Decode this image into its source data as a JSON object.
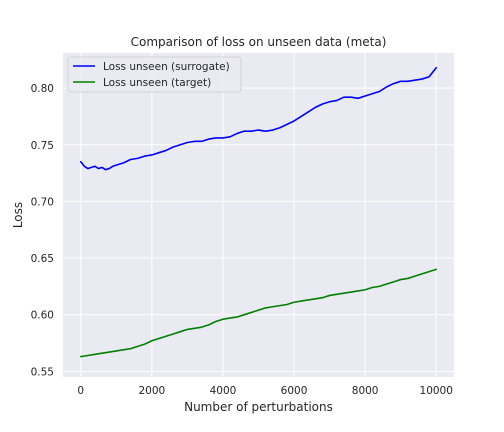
{
  "chart_data": {
    "type": "line",
    "title": "Comparison of loss on unseen data (meta)",
    "xlabel": "Number of perturbations",
    "ylabel": "Loss",
    "xlim": [
      -500,
      10500
    ],
    "ylim": [
      0.545,
      0.831
    ],
    "xticks": [
      0,
      2000,
      4000,
      6000,
      8000,
      10000
    ],
    "yticks": [
      0.55,
      0.6,
      0.65,
      0.7,
      0.75,
      0.8
    ],
    "ytick_labels": [
      "0.55",
      "0.60",
      "0.65",
      "0.70",
      "0.75",
      "0.80"
    ],
    "grid": true,
    "legend_position": "top-left",
    "background": "#eaeaf2",
    "series": [
      {
        "name": "Loss unseen (surrogate)",
        "color": "#0000ff",
        "x": [
          0,
          100,
          200,
          300,
          400,
          500,
          600,
          700,
          800,
          900,
          1000,
          1200,
          1400,
          1600,
          1800,
          2000,
          2200,
          2400,
          2600,
          2800,
          3000,
          3200,
          3400,
          3600,
          3800,
          4000,
          4200,
          4400,
          4600,
          4800,
          5000,
          5200,
          5400,
          5600,
          5800,
          6000,
          6200,
          6400,
          6600,
          6800,
          7000,
          7200,
          7400,
          7600,
          7800,
          8000,
          8200,
          8400,
          8600,
          8800,
          9000,
          9200,
          9400,
          9600,
          9800,
          10000
        ],
        "y": [
          0.735,
          0.731,
          0.729,
          0.73,
          0.731,
          0.729,
          0.73,
          0.728,
          0.729,
          0.731,
          0.732,
          0.734,
          0.737,
          0.738,
          0.74,
          0.741,
          0.743,
          0.745,
          0.748,
          0.75,
          0.752,
          0.753,
          0.753,
          0.755,
          0.756,
          0.756,
          0.757,
          0.76,
          0.762,
          0.762,
          0.763,
          0.762,
          0.763,
          0.765,
          0.768,
          0.771,
          0.775,
          0.779,
          0.783,
          0.786,
          0.788,
          0.789,
          0.792,
          0.792,
          0.791,
          0.793,
          0.795,
          0.797,
          0.801,
          0.804,
          0.806,
          0.806,
          0.807,
          0.808,
          0.81,
          0.818
        ]
      },
      {
        "name": "Loss unseen (target)",
        "color": "#008000",
        "x": [
          0,
          200,
          400,
          600,
          800,
          1000,
          1200,
          1400,
          1600,
          1800,
          2000,
          2200,
          2400,
          2600,
          2800,
          3000,
          3200,
          3400,
          3600,
          3800,
          4000,
          4200,
          4400,
          4600,
          4800,
          5000,
          5200,
          5400,
          5600,
          5800,
          6000,
          6200,
          6400,
          6600,
          6800,
          7000,
          7200,
          7400,
          7600,
          7800,
          8000,
          8200,
          8400,
          8600,
          8800,
          9000,
          9200,
          9400,
          9600,
          9800,
          10000
        ],
        "y": [
          0.563,
          0.564,
          0.565,
          0.566,
          0.567,
          0.568,
          0.569,
          0.57,
          0.572,
          0.574,
          0.577,
          0.579,
          0.581,
          0.583,
          0.585,
          0.587,
          0.588,
          0.589,
          0.591,
          0.594,
          0.596,
          0.597,
          0.598,
          0.6,
          0.602,
          0.604,
          0.606,
          0.607,
          0.608,
          0.609,
          0.611,
          0.612,
          0.613,
          0.614,
          0.615,
          0.617,
          0.618,
          0.619,
          0.62,
          0.621,
          0.622,
          0.624,
          0.625,
          0.627,
          0.629,
          0.631,
          0.632,
          0.634,
          0.636,
          0.638,
          0.64
        ]
      }
    ]
  }
}
